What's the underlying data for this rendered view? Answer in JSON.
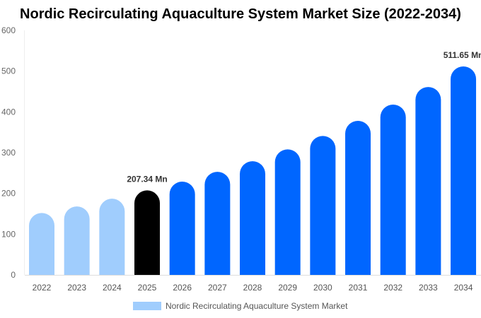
{
  "chart_data": {
    "type": "bar",
    "title": "Nordic Recirculating Aquaculture System Market Size (2022-2034)",
    "categories": [
      "2022",
      "2023",
      "2024",
      "2025",
      "2026",
      "2027",
      "2028",
      "2029",
      "2030",
      "2031",
      "2032",
      "2033",
      "2034"
    ],
    "series": [
      {
        "name": "Nordic Recirculating Aquaculture System Market",
        "values": [
          152,
          168,
          187,
          207.34,
          229,
          253,
          279,
          308,
          341,
          378,
          418,
          461,
          511.65
        ]
      }
    ],
    "data_labels": [
      {
        "category": "2025",
        "text": "207.34 Mn"
      },
      {
        "category": "2034",
        "text": "511.65 Mn"
      }
    ],
    "yticks": [
      "0",
      "100",
      "200",
      "300",
      "400",
      "500",
      "600"
    ],
    "ylim": [
      0,
      600
    ],
    "grid": false,
    "legend_position": "bottom",
    "colors": {
      "historical": "#a0cdfd",
      "current": "#000000",
      "forecast": "#0066ff"
    }
  }
}
